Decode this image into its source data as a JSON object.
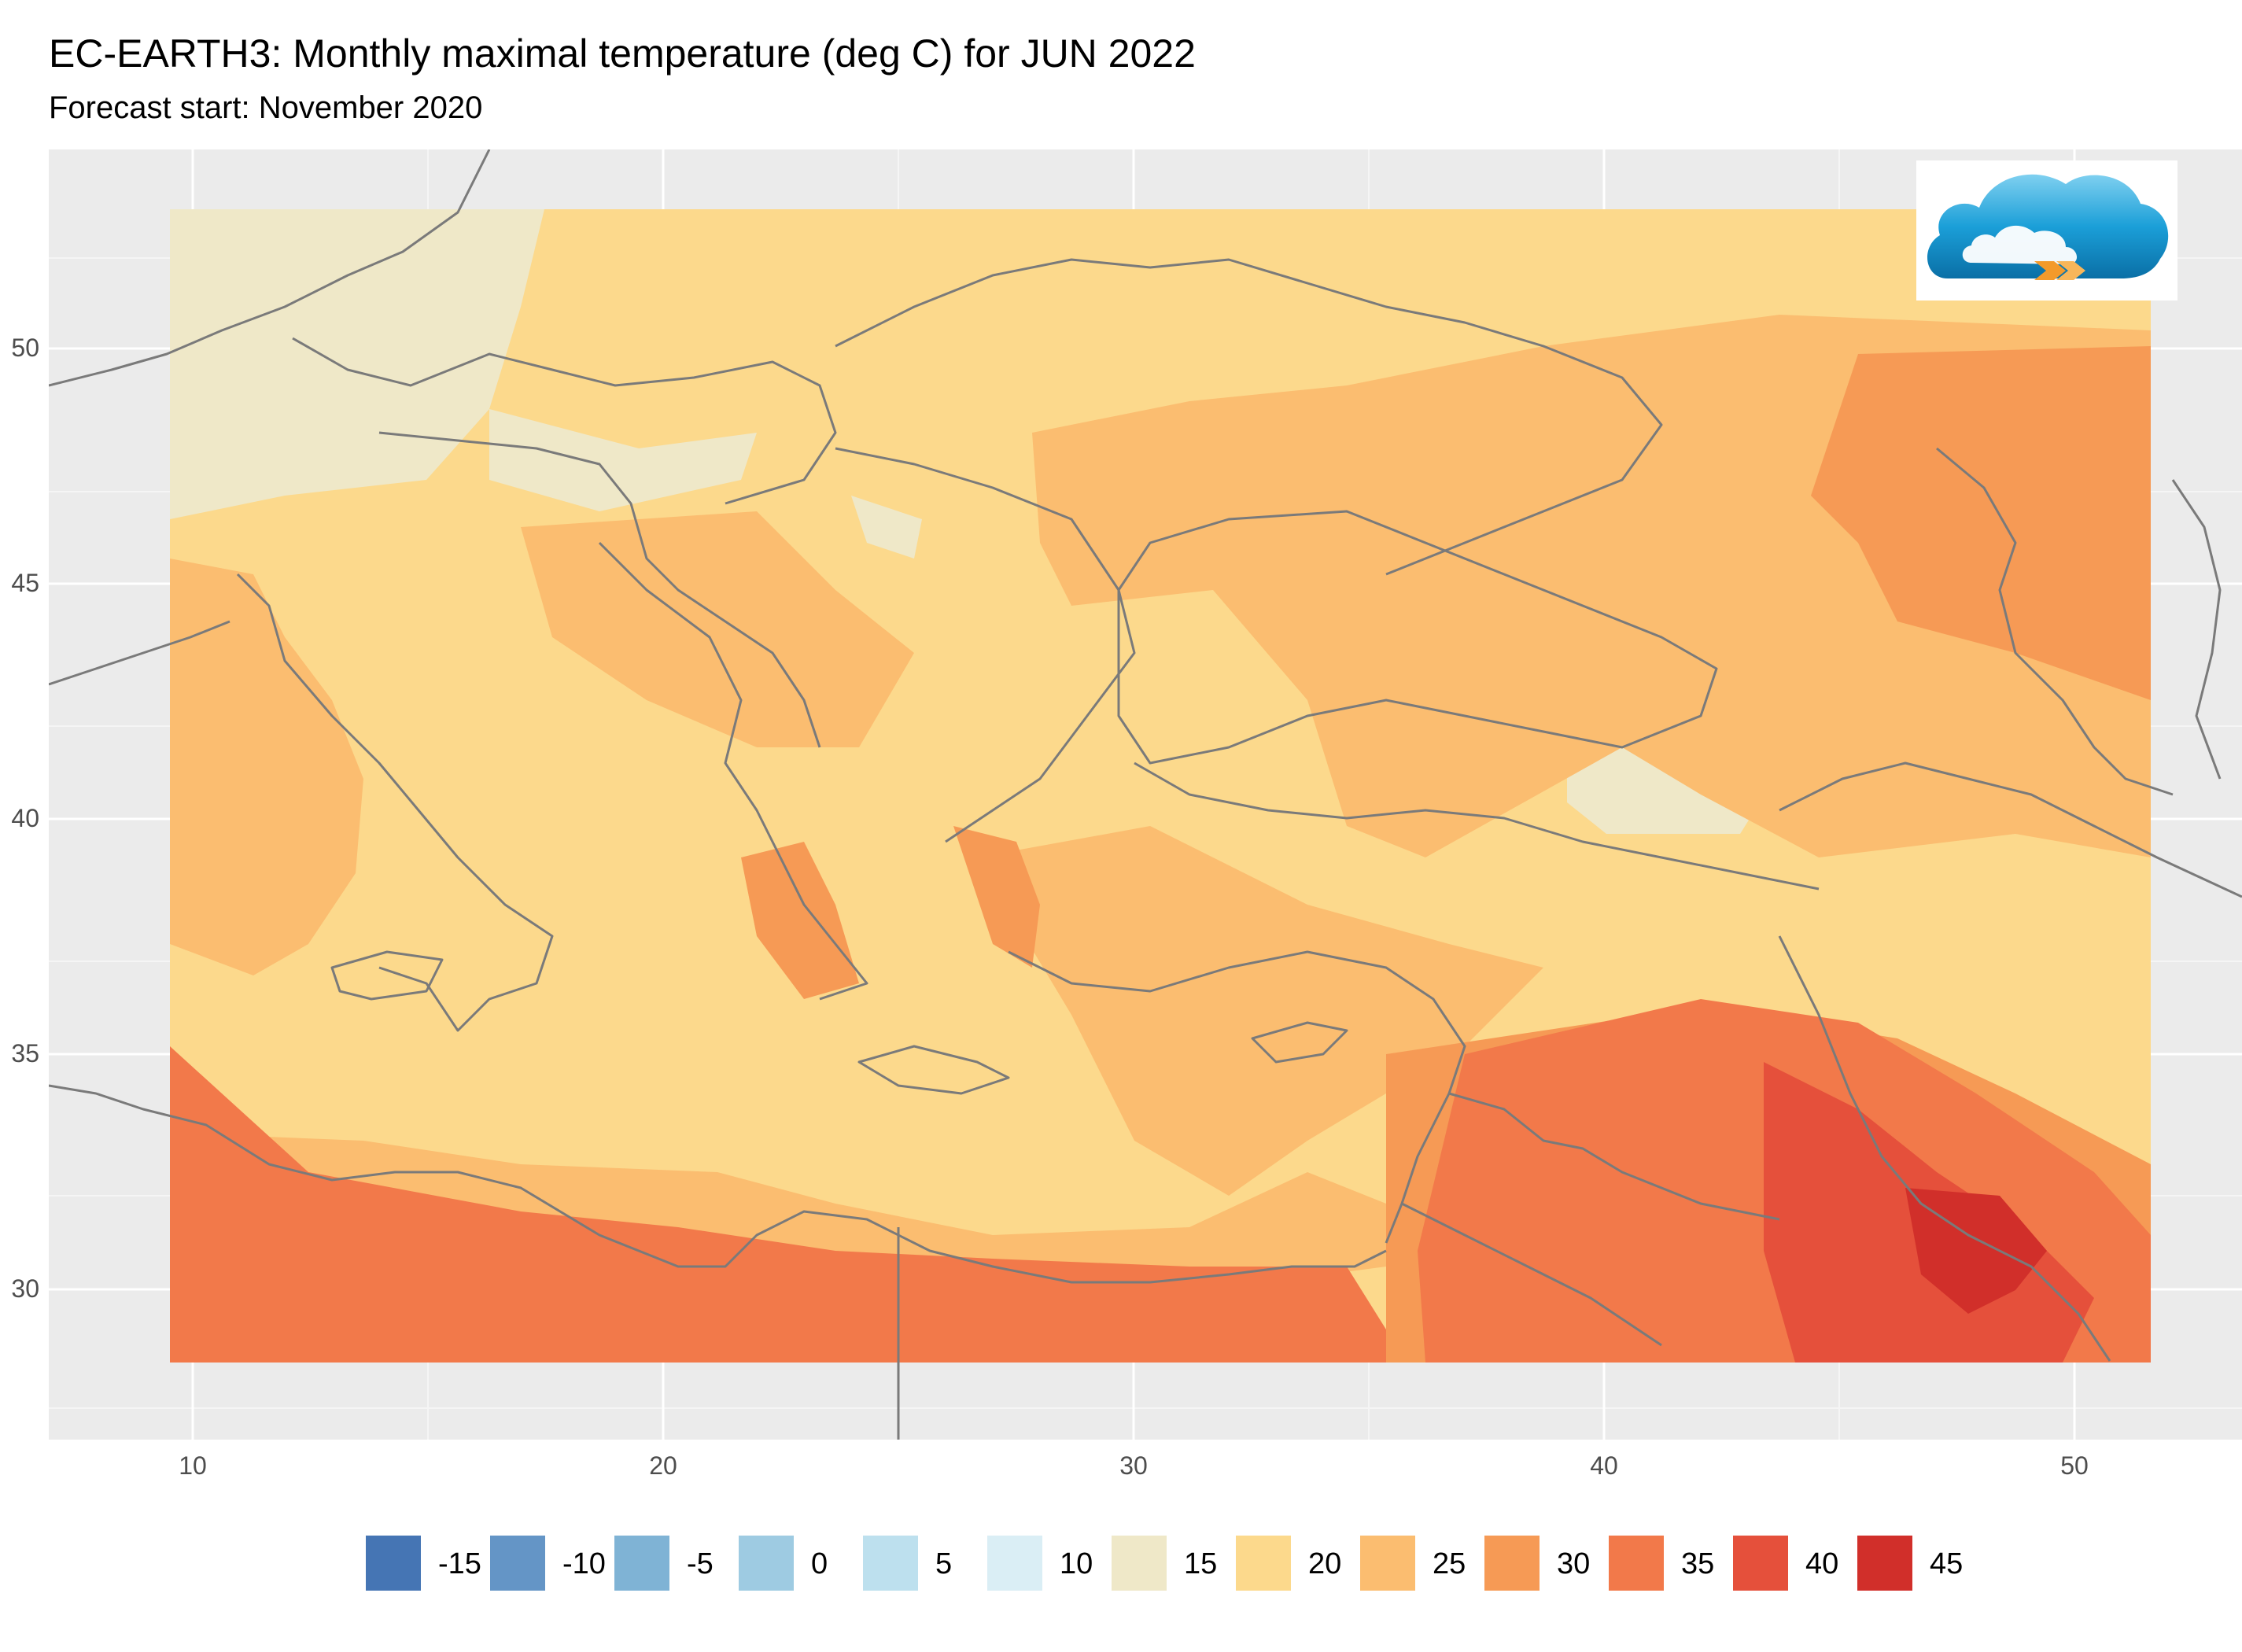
{
  "header": {
    "title": "EC-EARTH3: Monthly maximal temperature (deg C) for JUN 2022",
    "subtitle": "Forecast start: November 2020"
  },
  "axes": {
    "x_ticks": [
      "10",
      "20",
      "30",
      "40",
      "50"
    ],
    "y_ticks": [
      "50",
      "45",
      "40",
      "35",
      "30"
    ]
  },
  "map": {
    "lon_range": [
      7,
      54
    ],
    "lat_range": [
      27,
      54
    ],
    "data_extent": {
      "lon": [
        9.5,
        51.5
      ],
      "lat": [
        28.5,
        53
      ]
    },
    "panel_background": "#ebebeb",
    "grid_color": "#ffffff",
    "border_color": "#7a7a7a"
  },
  "legend": {
    "items": [
      {
        "label": "-15",
        "color": "#4575b4"
      },
      {
        "label": "-10",
        "color": "#6495c6"
      },
      {
        "label": "-5",
        "color": "#7fb3d5"
      },
      {
        "label": "0",
        "color": "#9ecbe2"
      },
      {
        "label": "5",
        "color": "#bde0ee"
      },
      {
        "label": "10",
        "color": "#daeef5"
      },
      {
        "label": "15",
        "color": "#efe8c8"
      },
      {
        "label": "20",
        "color": "#fcd98c"
      },
      {
        "label": "25",
        "color": "#fbbd70"
      },
      {
        "label": "30",
        "color": "#f69a55"
      },
      {
        "label": "35",
        "color": "#f2794a"
      },
      {
        "label": "40",
        "color": "#e5503b"
      },
      {
        "label": "45",
        "color": "#d12f2a"
      }
    ]
  },
  "logo": {
    "icon": "cloud-logo-icon"
  }
}
